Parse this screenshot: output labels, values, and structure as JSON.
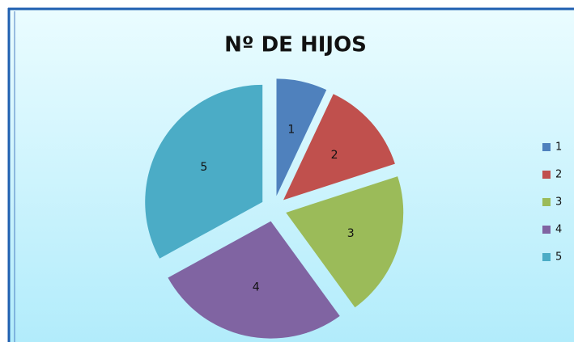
{
  "chart_data": {
    "type": "pie",
    "title": "Nº DE HIJOS",
    "categories": [
      "1",
      "2",
      "3",
      "4",
      "5"
    ],
    "values": [
      7,
      13,
      20,
      27,
      33
    ],
    "colors": [
      "#4f81bd",
      "#c0504d",
      "#9bbb59",
      "#8064a2",
      "#4bacc6"
    ],
    "legend": "right"
  }
}
